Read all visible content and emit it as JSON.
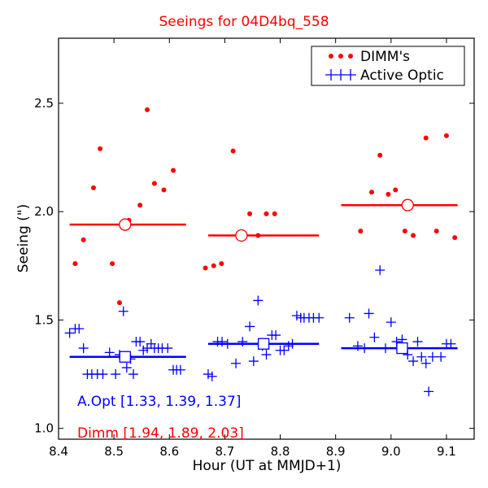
{
  "chart_data": {
    "type": "scatter",
    "title": "Seeings for 04D4bq_558",
    "xlabel": "Hour (UT at MMJD+1)",
    "ylabel": "Seeing (\")",
    "xlim": [
      8.4,
      9.15
    ],
    "ylim": [
      0.95,
      2.8
    ],
    "xticks": [
      8.4,
      8.5,
      8.6,
      8.7,
      8.8,
      8.9,
      9.0,
      9.1
    ],
    "xtick_labels": [
      "8.4",
      "8.5",
      "8.6",
      "8.7",
      "8.8",
      "8.9",
      "9.0",
      "9.1"
    ],
    "yticks": [
      1.0,
      1.5,
      2.0,
      2.5
    ],
    "ytick_labels": [
      "1.0",
      "1.5",
      "2.0",
      "2.5"
    ],
    "grid": false,
    "legend_position": "top-right",
    "colors": {
      "dimm": "#ff0000",
      "active_optic": "#0000ff",
      "title": "#ff0000"
    },
    "series": [
      {
        "name": "DIMM's",
        "marker": "dot",
        "color": "#ff0000",
        "x": [
          8.43,
          8.445,
          8.463,
          8.475,
          8.497,
          8.51,
          8.527,
          8.547,
          8.56,
          8.573,
          8.59,
          8.607,
          8.665,
          8.68,
          8.694,
          8.715,
          8.745,
          8.76,
          8.775,
          8.79,
          8.945,
          8.965,
          8.98,
          8.995,
          9.008,
          9.025,
          9.04,
          9.063,
          9.082,
          9.1,
          9.115
        ],
        "y": [
          1.76,
          1.87,
          2.11,
          2.29,
          1.76,
          1.58,
          1.96,
          2.03,
          2.47,
          2.13,
          2.1,
          2.19,
          1.74,
          1.75,
          1.76,
          2.28,
          1.99,
          1.89,
          1.99,
          1.99,
          1.91,
          2.09,
          2.26,
          2.08,
          2.1,
          1.91,
          1.89,
          2.34,
          1.91,
          2.35,
          1.88
        ]
      },
      {
        "name": "Active Optic",
        "marker": "plus",
        "color": "#0000ff",
        "x": [
          8.42,
          8.43,
          8.437,
          8.445,
          8.452,
          8.46,
          8.47,
          8.48,
          8.492,
          8.503,
          8.51,
          8.517,
          8.523,
          8.53,
          8.535,
          8.54,
          8.547,
          8.553,
          8.56,
          8.567,
          8.573,
          8.58,
          8.587,
          8.597,
          8.607,
          8.613,
          8.62,
          8.67,
          8.677,
          8.687,
          8.695,
          8.705,
          8.72,
          8.732,
          8.745,
          8.752,
          8.76,
          8.768,
          8.775,
          8.785,
          8.792,
          8.8,
          8.807,
          8.815,
          8.822,
          8.83,
          8.837,
          8.843,
          8.852,
          8.86,
          8.87,
          8.925,
          8.94,
          8.952,
          8.96,
          8.97,
          8.98,
          8.99,
          9.0,
          9.01,
          9.02,
          9.03,
          9.04,
          9.048,
          9.055,
          9.063,
          9.068,
          9.075,
          9.09,
          9.1,
          9.108
        ],
        "y": [
          1.44,
          1.46,
          1.46,
          1.37,
          1.25,
          1.25,
          1.25,
          1.25,
          1.35,
          1.25,
          1.34,
          1.54,
          1.28,
          1.32,
          1.25,
          1.4,
          1.4,
          1.36,
          1.37,
          1.39,
          1.37,
          1.37,
          1.37,
          1.37,
          1.27,
          1.27,
          1.27,
          1.25,
          1.24,
          1.4,
          1.4,
          1.39,
          1.3,
          1.4,
          1.47,
          1.31,
          1.59,
          1.38,
          1.34,
          1.43,
          1.43,
          1.36,
          1.36,
          1.38,
          1.39,
          1.52,
          1.51,
          1.51,
          1.51,
          1.51,
          1.51,
          1.51,
          1.38,
          1.37,
          1.53,
          1.42,
          1.73,
          1.37,
          1.49,
          1.4,
          1.41,
          1.34,
          1.31,
          1.4,
          1.33,
          1.3,
          1.17,
          1.33,
          1.33,
          1.39,
          1.39
        ]
      }
    ],
    "medians": [
      {
        "series": "DIMM's",
        "x_range": [
          8.42,
          8.63
        ],
        "value": 1.94,
        "marker_x": 8.52
      },
      {
        "series": "DIMM's",
        "x_range": [
          8.67,
          8.87
        ],
        "value": 1.89,
        "marker_x": 8.73
      },
      {
        "series": "DIMM's",
        "x_range": [
          8.91,
          9.12
        ],
        "value": 2.03,
        "marker_x": 9.03
      },
      {
        "series": "Active Optic",
        "x_range": [
          8.42,
          8.63
        ],
        "value": 1.33,
        "marker_x": 8.52
      },
      {
        "series": "Active Optic",
        "x_range": [
          8.67,
          8.87
        ],
        "value": 1.39,
        "marker_x": 8.77
      },
      {
        "series": "Active Optic",
        "x_range": [
          8.91,
          9.12
        ],
        "value": 1.37,
        "marker_x": 9.02
      }
    ],
    "annotations": [
      {
        "text": "A.Opt [1.33, 1.39, 1.37]",
        "color": "#0000ff"
      },
      {
        "text": "Dimm [1.94, 1.89, 2.03]",
        "color": "#ff0000"
      }
    ]
  }
}
